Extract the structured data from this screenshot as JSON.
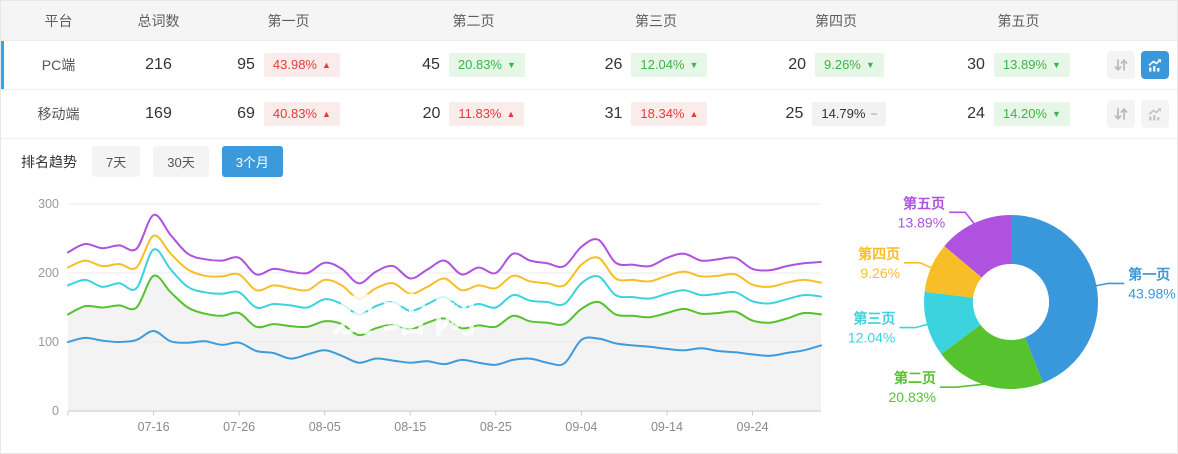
{
  "colors": {
    "accent_blue": "#3898DB",
    "row_accent_bar": "#2CA6EC",
    "badge_up_text": "#E53A3A",
    "badge_up_bg": "#FBECEC",
    "badge_down_text": "#3CB549",
    "badge_down_bg": "#E6F6E7",
    "badge_flat_bg": "#F2F2F2",
    "series_blue": "#3E9BDC",
    "series_green": "#55C22E",
    "series_cyan": "#3AD3DE",
    "series_yellow": "#F7BE27",
    "series_purple": "#AE52DF",
    "area_fill": "#f3f3f3"
  },
  "trend_glyphs": {
    "up": "▲",
    "down": "▼",
    "flat": "−"
  },
  "table": {
    "columns": [
      "平台",
      "总词数",
      "第一页",
      "第二页",
      "第三页",
      "第四页",
      "第五页"
    ],
    "rows": [
      {
        "platform": "PC端",
        "total": "216",
        "active": true,
        "pages": [
          {
            "count": "95",
            "pct": "43.98%",
            "trend": "up"
          },
          {
            "count": "45",
            "pct": "20.83%",
            "trend": "down"
          },
          {
            "count": "26",
            "pct": "12.04%",
            "trend": "down"
          },
          {
            "count": "20",
            "pct": "9.26%",
            "trend": "down"
          },
          {
            "count": "30",
            "pct": "13.89%",
            "trend": "down"
          }
        ]
      },
      {
        "platform": "移动端",
        "total": "169",
        "active": false,
        "pages": [
          {
            "count": "69",
            "pct": "40.83%",
            "trend": "up"
          },
          {
            "count": "20",
            "pct": "11.83%",
            "trend": "up"
          },
          {
            "count": "31",
            "pct": "18.34%",
            "trend": "up"
          },
          {
            "count": "25",
            "pct": "14.79%",
            "trend": "flat"
          },
          {
            "count": "24",
            "pct": "14.20%",
            "trend": "down"
          }
        ]
      }
    ]
  },
  "trend_section": {
    "label": "排名趋势",
    "tabs": [
      {
        "label": "7天",
        "active": false
      },
      {
        "label": "30天",
        "active": false
      },
      {
        "label": "3个月",
        "active": true
      }
    ]
  },
  "watermark": "爱站网",
  "chart_data": [
    {
      "type": "line",
      "title": "排名趋势 (3个月)",
      "x_ticks": [
        "07-16",
        "07-26",
        "08-05",
        "08-15",
        "08-25",
        "09-04",
        "09-14",
        "09-24"
      ],
      "tick_indices": [
        5,
        10,
        15,
        20,
        25,
        30,
        35,
        40
      ],
      "ylim": [
        0,
        300
      ],
      "y_ticks": [
        0,
        100,
        200,
        300
      ],
      "grid": true,
      "legend": "none",
      "area_fill_series": "第二页",
      "series": [
        {
          "name": "第一页",
          "color": "#3E9BDC",
          "values": [
            100,
            106,
            102,
            100,
            103,
            116,
            101,
            99,
            101,
            96,
            99,
            87,
            84,
            76,
            82,
            88,
            80,
            70,
            76,
            73,
            70,
            72,
            68,
            74,
            70,
            67,
            74,
            76,
            70,
            69,
            103,
            105,
            98,
            95,
            93,
            90,
            88,
            91,
            87,
            85,
            82,
            80,
            84,
            88,
            95
          ]
        },
        {
          "name": "第二页",
          "color": "#55C22E",
          "values": [
            140,
            152,
            150,
            153,
            150,
            196,
            172,
            150,
            141,
            138,
            142,
            122,
            126,
            123,
            122,
            130,
            126,
            110,
            120,
            125,
            118,
            128,
            134,
            120,
            124,
            122,
            138,
            130,
            128,
            126,
            148,
            158,
            140,
            138,
            136,
            142,
            148,
            141,
            142,
            144,
            131,
            128,
            134,
            142,
            140
          ]
        },
        {
          "name": "第三页",
          "color": "#3AD3DE",
          "values": [
            182,
            190,
            180,
            185,
            178,
            234,
            205,
            180,
            172,
            170,
            172,
            150,
            155,
            153,
            150,
            162,
            155,
            140,
            152,
            158,
            145,
            155,
            165,
            150,
            155,
            150,
            168,
            160,
            158,
            155,
            185,
            195,
            168,
            165,
            163,
            170,
            175,
            168,
            170,
            172,
            159,
            156,
            162,
            168,
            166
          ]
        },
        {
          "name": "第四页",
          "color": "#F7BE27",
          "values": [
            208,
            218,
            210,
            213,
            208,
            254,
            228,
            205,
            196,
            195,
            198,
            175,
            182,
            178,
            175,
            190,
            182,
            163,
            178,
            185,
            170,
            180,
            192,
            175,
            182,
            178,
            196,
            188,
            185,
            182,
            212,
            222,
            192,
            190,
            188,
            196,
            202,
            195,
            196,
            198,
            183,
            180,
            186,
            190,
            186
          ]
        },
        {
          "name": "第五页",
          "color": "#AE52DF",
          "values": [
            230,
            242,
            236,
            240,
            235,
            284,
            255,
            228,
            220,
            218,
            222,
            198,
            206,
            202,
            200,
            215,
            206,
            185,
            202,
            210,
            192,
            205,
            218,
            198,
            208,
            200,
            228,
            218,
            214,
            210,
            238,
            248,
            215,
            212,
            210,
            222,
            228,
            218,
            220,
            222,
            206,
            204,
            210,
            214,
            216
          ]
        }
      ]
    },
    {
      "type": "pie",
      "subtype": "donut",
      "slices": [
        {
          "label": "第一页",
          "value": 43.98,
          "pct_label": "43.98%",
          "color": "#3898DB"
        },
        {
          "label": "第二页",
          "value": 20.83,
          "pct_label": "20.83%",
          "color": "#55C22E"
        },
        {
          "label": "第三页",
          "value": 12.04,
          "pct_label": "12.04%",
          "color": "#3AD3DE"
        },
        {
          "label": "第四页",
          "value": 9.26,
          "pct_label": "9.26%",
          "color": "#F7BE27"
        },
        {
          "label": "第五页",
          "value": 13.89,
          "pct_label": "13.89%",
          "color": "#AE52DF"
        }
      ]
    }
  ]
}
